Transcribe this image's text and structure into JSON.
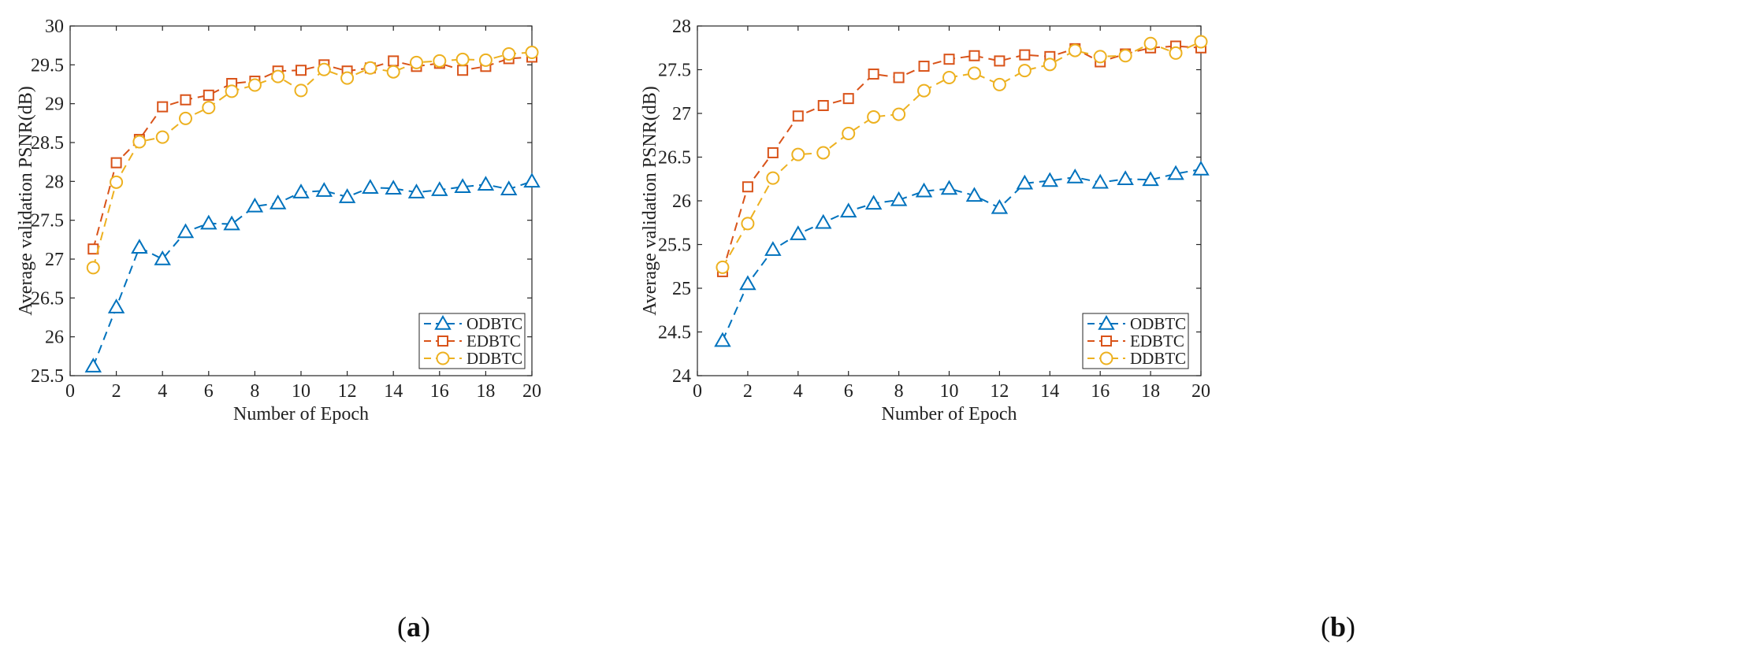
{
  "figure": {
    "captions": [
      {
        "open": "(",
        "letter": "a",
        "close": ")"
      },
      {
        "open": "(",
        "letter": "b",
        "close": ")"
      }
    ]
  },
  "chart_data": [
    {
      "type": "line",
      "title": "",
      "xlabel": "Number of Epoch",
      "ylabel": "Average validation PSNR(dB)",
      "xlim": [
        0,
        20
      ],
      "ylim": [
        25.5,
        30
      ],
      "xticks": [
        0,
        2,
        4,
        6,
        8,
        10,
        12,
        14,
        16,
        18,
        20
      ],
      "yticks": [
        25.5,
        26,
        26.5,
        27,
        27.5,
        28,
        28.5,
        29,
        29.5,
        30
      ],
      "ytick_labels": [
        "25.5",
        "26",
        "26.5",
        "27",
        "27.5",
        "28",
        "28.5",
        "29",
        "29.5",
        "30"
      ],
      "legend_position": "bottom-right",
      "x": [
        1,
        2,
        3,
        4,
        5,
        6,
        7,
        8,
        9,
        10,
        11,
        12,
        13,
        14,
        15,
        16,
        17,
        18,
        19,
        20
      ],
      "series": [
        {
          "name": "ODBTC",
          "color": "#0072BD",
          "marker": "triangle",
          "values": [
            25.62,
            26.38,
            27.15,
            27.0,
            27.35,
            27.46,
            27.45,
            27.68,
            27.72,
            27.86,
            27.88,
            27.8,
            27.92,
            27.91,
            27.86,
            27.89,
            27.93,
            27.96,
            27.9,
            28.0
          ]
        },
        {
          "name": "EDBTC",
          "color": "#D95319",
          "marker": "square",
          "values": [
            27.13,
            28.24,
            28.54,
            28.96,
            29.05,
            29.11,
            29.26,
            29.29,
            29.42,
            29.43,
            29.5,
            29.42,
            29.46,
            29.55,
            29.48,
            29.52,
            29.43,
            29.48,
            29.58,
            29.6
          ]
        },
        {
          "name": "DDBTC",
          "color": "#EDB120",
          "marker": "circle",
          "values": [
            26.89,
            27.99,
            28.51,
            28.57,
            28.81,
            28.95,
            29.16,
            29.24,
            29.35,
            29.17,
            29.44,
            29.33,
            29.46,
            29.41,
            29.53,
            29.55,
            29.57,
            29.56,
            29.64,
            29.66
          ]
        }
      ]
    },
    {
      "type": "line",
      "title": "",
      "xlabel": "Number of Epoch",
      "ylabel": "Average validation PSNR(dB)",
      "xlim": [
        0,
        20
      ],
      "ylim": [
        24,
        28
      ],
      "xticks": [
        0,
        2,
        4,
        6,
        8,
        10,
        12,
        14,
        16,
        18,
        20
      ],
      "yticks": [
        24,
        24.5,
        25,
        25.5,
        26,
        26.5,
        27,
        27.5,
        28
      ],
      "ytick_labels": [
        "24",
        "24.5",
        "25",
        "25.5",
        "26",
        "26.5",
        "27",
        "27.5",
        "28"
      ],
      "legend_position": "bottom-right",
      "x": [
        1,
        2,
        3,
        4,
        5,
        6,
        7,
        8,
        9,
        10,
        11,
        12,
        13,
        14,
        15,
        16,
        17,
        18,
        19,
        20
      ],
      "series": [
        {
          "name": "ODBTC",
          "color": "#0072BD",
          "marker": "triangle",
          "values": [
            24.4,
            25.05,
            25.44,
            25.62,
            25.75,
            25.88,
            25.97,
            26.01,
            26.11,
            26.14,
            26.06,
            25.92,
            26.2,
            26.23,
            26.27,
            26.21,
            26.25,
            26.24,
            26.31,
            26.36
          ]
        },
        {
          "name": "EDBTC",
          "color": "#D95319",
          "marker": "square",
          "values": [
            25.19,
            26.16,
            26.55,
            26.97,
            27.09,
            27.17,
            27.45,
            27.41,
            27.54,
            27.62,
            27.66,
            27.6,
            27.67,
            27.65,
            27.74,
            27.59,
            27.68,
            27.75,
            27.77,
            27.75
          ]
        },
        {
          "name": "DDBTC",
          "color": "#EDB120",
          "marker": "circle",
          "values": [
            25.24,
            25.74,
            26.26,
            26.53,
            26.55,
            26.77,
            26.96,
            26.99,
            27.26,
            27.41,
            27.46,
            27.33,
            27.49,
            27.56,
            27.72,
            27.65,
            27.66,
            27.8,
            27.69,
            27.82
          ]
        }
      ]
    }
  ]
}
